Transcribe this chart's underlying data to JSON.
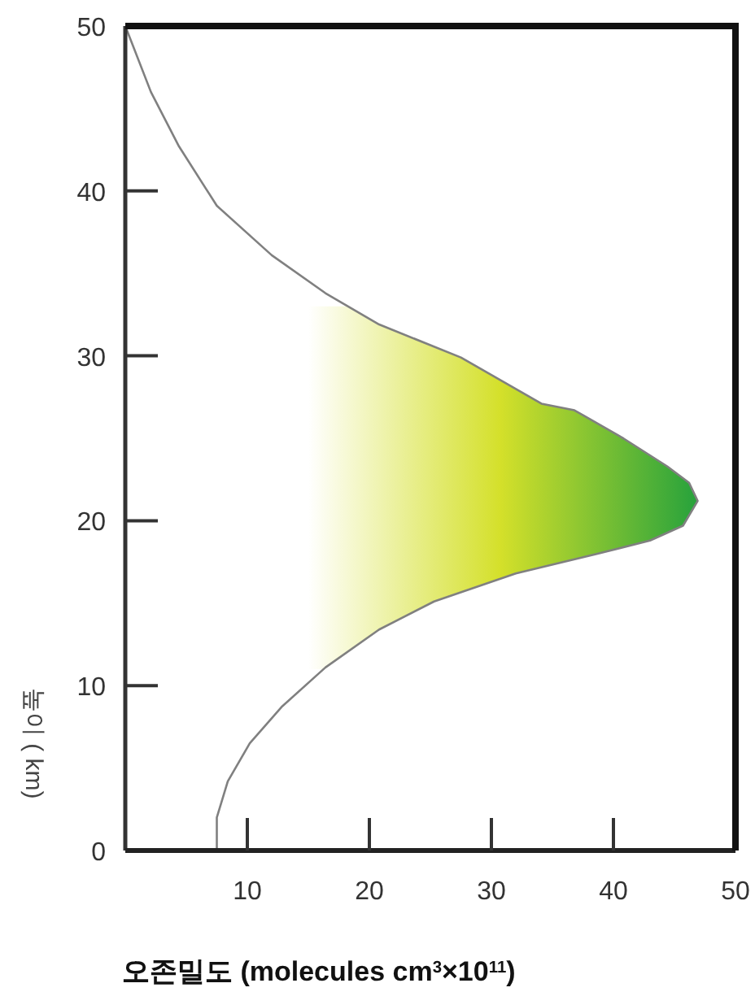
{
  "chart_data": {
    "type": "line",
    "xlabel": "오존밀도 (molecules cm$^{3}$×10$^{11}$)",
    "ylabel": "높이 ( km)",
    "xlim": [
      0,
      50
    ],
    "ylim": [
      0,
      50
    ],
    "xticks": [
      10,
      20,
      30,
      40,
      50
    ],
    "yticks": [
      0,
      10,
      20,
      30,
      40,
      50
    ],
    "x": [
      7.5,
      7.5,
      8.4,
      10.2,
      12.8,
      16.4,
      20.8,
      25.3,
      32,
      38.7,
      43,
      45.7,
      46.9,
      46.2,
      44.4,
      40.8,
      36.8,
      34.1,
      27.5,
      20.8,
      16.4,
      12,
      7.5,
      4.4,
      2.1,
      0
    ],
    "series": [
      {
        "color": "#808080",
        "values": [
          0,
          2,
          4.2,
          6.5,
          8.7,
          11.1,
          13.4,
          15.1,
          16.8,
          18,
          18.8,
          19.7,
          21.2,
          22.3,
          23.3,
          25,
          26.7,
          27.1,
          29.9,
          31.9,
          33.8,
          36.1,
          39.1,
          42.7,
          46,
          50
        ]
      }
    ]
  }
}
